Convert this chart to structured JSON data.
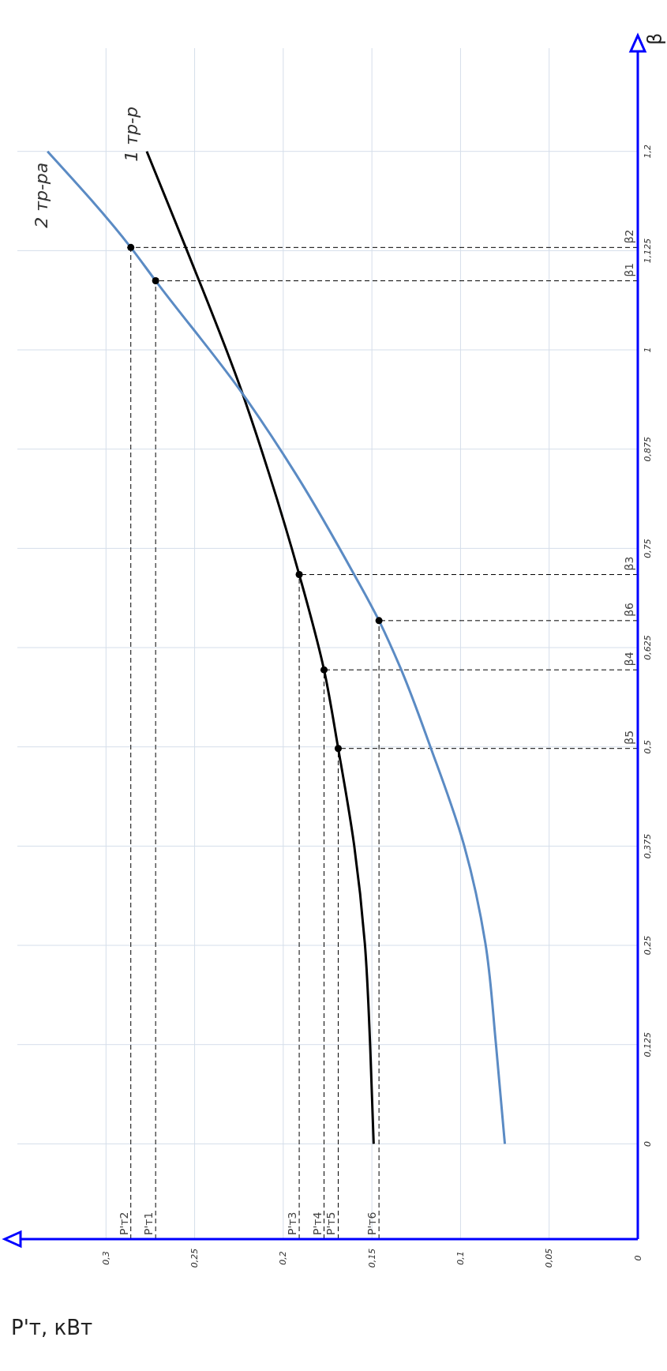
{
  "chart_data": {
    "type": "line",
    "xlabel": "Р'т, кВт",
    "ylabel": "β",
    "xlim": [
      0.35,
      0
    ],
    "xticks": [
      {
        "value": 0,
        "label": "0"
      },
      {
        "value": 0.05,
        "label": "0,05"
      },
      {
        "value": 0.1,
        "label": "0,1"
      },
      {
        "value": 0.15,
        "label": "0,15"
      },
      {
        "value": 0.2,
        "label": "0,2"
      },
      {
        "value": 0.25,
        "label": "0,25"
      },
      {
        "value": 0.3,
        "label": "0,3"
      }
    ],
    "ylim": [
      -0.12,
      1.38
    ],
    "yticks": [
      {
        "value": 0,
        "label": "0"
      },
      {
        "value": 0.125,
        "label": "0,125"
      },
      {
        "value": 0.25,
        "label": "0,25"
      },
      {
        "value": 0.375,
        "label": "0,375"
      },
      {
        "value": 0.5,
        "label": "0,5"
      },
      {
        "value": 0.625,
        "label": "0,625"
      },
      {
        "value": 0.75,
        "label": "0,75"
      },
      {
        "value": 0.875,
        "label": "0,875"
      },
      {
        "value": 1,
        "label": "1"
      },
      {
        "value": 1.125,
        "label": "1,125"
      },
      {
        "value": 1.25,
        "label": "1,2"
      }
    ],
    "grid": true,
    "marker": "none",
    "series": [
      {
        "name": "1 тр-р",
        "color": "#000000",
        "x": [
          0.149,
          0.151,
          0.154,
          0.16,
          0.169,
          0.177,
          0.191,
          0.208,
          0.223,
          0.255,
          0.277
        ],
        "values": [
          0,
          0.125,
          0.253,
          0.376,
          0.498,
          0.597,
          0.717,
          0.844,
          0.945,
          1.129,
          1.25
        ]
      },
      {
        "name": "2 тр-ра",
        "color": "#5b8bc4",
        "x": [
          0.075,
          0.08,
          0.086,
          0.098,
          0.117,
          0.134,
          0.146,
          0.16,
          0.193,
          0.223,
          0.272,
          0.286,
          0.333
        ],
        "values": [
          0,
          0.125,
          0.253,
          0.376,
          0.5,
          0.6,
          0.659,
          0.717,
          0.844,
          0.945,
          1.087,
          1.129,
          1.25
        ]
      },
      {
        "type": "scatter",
        "color": "#000000",
        "marker": "circle",
        "x": [
          0.272,
          0.286,
          0.191,
          0.177,
          0.169,
          0.146
        ],
        "values": [
          1.087,
          1.129,
          0.717,
          0.597,
          0.498,
          0.659
        ]
      }
    ],
    "annotations": [
      {
        "text": "β1",
        "x": 0.272,
        "y": 1.087
      },
      {
        "text": "Р'т1",
        "x": 0.272,
        "y": 1.087
      },
      {
        "text": "β2",
        "x": 0.286,
        "y": 1.129
      },
      {
        "text": "Р'т2",
        "x": 0.286,
        "y": 1.129
      },
      {
        "text": "β3",
        "x": 0.191,
        "y": 0.717
      },
      {
        "text": "Р'т3",
        "x": 0.191,
        "y": 0.717
      },
      {
        "text": "β4",
        "x": 0.177,
        "y": 0.597
      },
      {
        "text": "Р'т4",
        "x": 0.177,
        "y": 0.597
      },
      {
        "text": "β5",
        "x": 0.169,
        "y": 0.498
      },
      {
        "text": "Р'т5",
        "x": 0.169,
        "y": 0.498
      },
      {
        "text": "β6",
        "x": 0.146,
        "y": 0.659
      },
      {
        "text": "Р'т6",
        "x": 0.146,
        "y": 0.659
      }
    ]
  }
}
